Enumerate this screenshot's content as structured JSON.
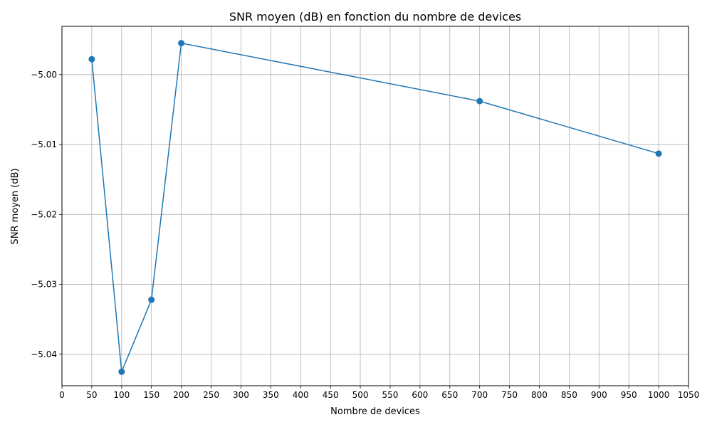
{
  "chart_data": {
    "type": "line",
    "title": "SNR moyen (dB) en fonction du nombre de devices",
    "xlabel": "Nombre de devices",
    "ylabel": "SNR moyen (dB)",
    "xlim": [
      0,
      1050
    ],
    "ylim": [
      -5.0445,
      -4.9931
    ],
    "xticks": [
      0,
      50,
      100,
      150,
      200,
      250,
      300,
      350,
      400,
      450,
      500,
      550,
      600,
      650,
      700,
      750,
      800,
      850,
      900,
      950,
      1000,
      1050
    ],
    "yticks": [
      -5.04,
      -5.03,
      -5.02,
      -5.01,
      -5.0
    ],
    "ytick_labels": [
      "−5.04",
      "−5.03",
      "−5.02",
      "−5.01",
      "−5.00"
    ],
    "grid": true,
    "series": [
      {
        "color": "#1f77b4",
        "marker": "circle",
        "x": [
          50,
          100,
          150,
          200,
          700,
          1000
        ],
        "y": [
          -4.9978,
          -5.0425,
          -5.0322,
          -4.9955,
          -5.0038,
          -5.0113
        ]
      }
    ]
  }
}
